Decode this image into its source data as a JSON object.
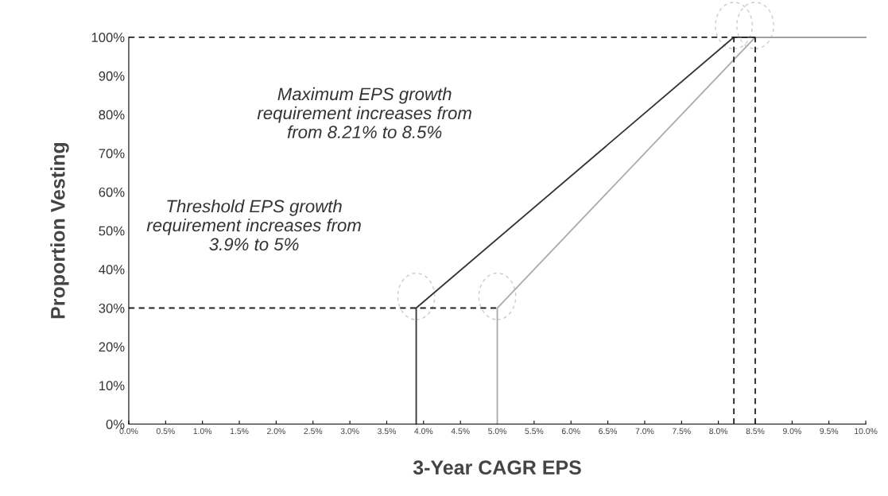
{
  "chart_data": {
    "type": "line",
    "xlabel": "3-Year CAGR EPS",
    "ylabel": "Proportion Vesting",
    "series": [
      {
        "color": "#333333",
        "x": [
          3.9,
          3.9,
          8.21,
          10
        ],
        "values": [
          0,
          30,
          100,
          100
        ],
        "line_style": "solid"
      },
      {
        "color": "#aaaaaa",
        "x": [
          5,
          5,
          8.5,
          10
        ],
        "values": [
          0,
          30,
          100,
          100
        ],
        "line_style": "solid"
      },
      {
        "color": "#222222",
        "x": [
          0,
          5
        ],
        "values": [
          30,
          30
        ],
        "line_style": "dashed"
      },
      {
        "color": "#222222",
        "x": [
          0,
          8.5
        ],
        "values": [
          100,
          100
        ],
        "line_style": "dashed"
      },
      {
        "color": "#222222",
        "x": [
          8.21,
          8.21
        ],
        "values": [
          0,
          100
        ],
        "line_style": "dashed"
      },
      {
        "color": "#222222",
        "x": [
          8.5,
          8.5
        ],
        "values": [
          0,
          100
        ],
        "line_style": "dashed"
      }
    ],
    "annotations": [
      "Maximum EPS growth\nrequirement increases from\nfrom 8.21% to 8.5%",
      "Threshold EPS growth\nrequirement increases from\n3.9% to 5%"
    ],
    "xlim": [
      0,
      10
    ],
    "ylim": [
      0,
      100
    ],
    "xticks": [
      {
        "value": 0,
        "label": "0.0%"
      },
      {
        "value": 0.5,
        "label": "0.5%"
      },
      {
        "value": 1,
        "label": "1.0%"
      },
      {
        "value": 1.5,
        "label": "1.5%"
      },
      {
        "value": 2,
        "label": "2.0%"
      },
      {
        "value": 2.5,
        "label": "2.5%"
      },
      {
        "value": 3,
        "label": "3.0%"
      },
      {
        "value": 3.5,
        "label": "3.5%"
      },
      {
        "value": 4,
        "label": "4.0%"
      },
      {
        "value": 4.5,
        "label": "4.5%"
      },
      {
        "value": 5,
        "label": "5.0%"
      },
      {
        "value": 5.5,
        "label": "5.5%"
      },
      {
        "value": 6,
        "label": "6.0%"
      },
      {
        "value": 6.5,
        "label": "6.5%"
      },
      {
        "value": 7,
        "label": "7.0%"
      },
      {
        "value": 7.5,
        "label": "7.5%"
      },
      {
        "value": 8,
        "label": "8.0%"
      },
      {
        "value": 8.5,
        "label": "8.5%"
      },
      {
        "value": 9,
        "label": "9.0%"
      },
      {
        "value": 9.5,
        "label": "9.5%"
      },
      {
        "value": 10,
        "label": "10.0%"
      }
    ],
    "yticks": [
      {
        "value": 0,
        "label": "0%"
      },
      {
        "value": 10,
        "label": "10%"
      },
      {
        "value": 20,
        "label": "20%"
      },
      {
        "value": 30,
        "label": "30%"
      },
      {
        "value": 40,
        "label": "40%"
      },
      {
        "value": 50,
        "label": "50%"
      },
      {
        "value": 60,
        "label": "60%"
      },
      {
        "value": 70,
        "label": "70%"
      },
      {
        "value": 80,
        "label": "80%"
      },
      {
        "value": 90,
        "label": "90%"
      },
      {
        "value": 100,
        "label": "100%"
      }
    ],
    "grid": false,
    "legend": false,
    "marker": "none"
  }
}
